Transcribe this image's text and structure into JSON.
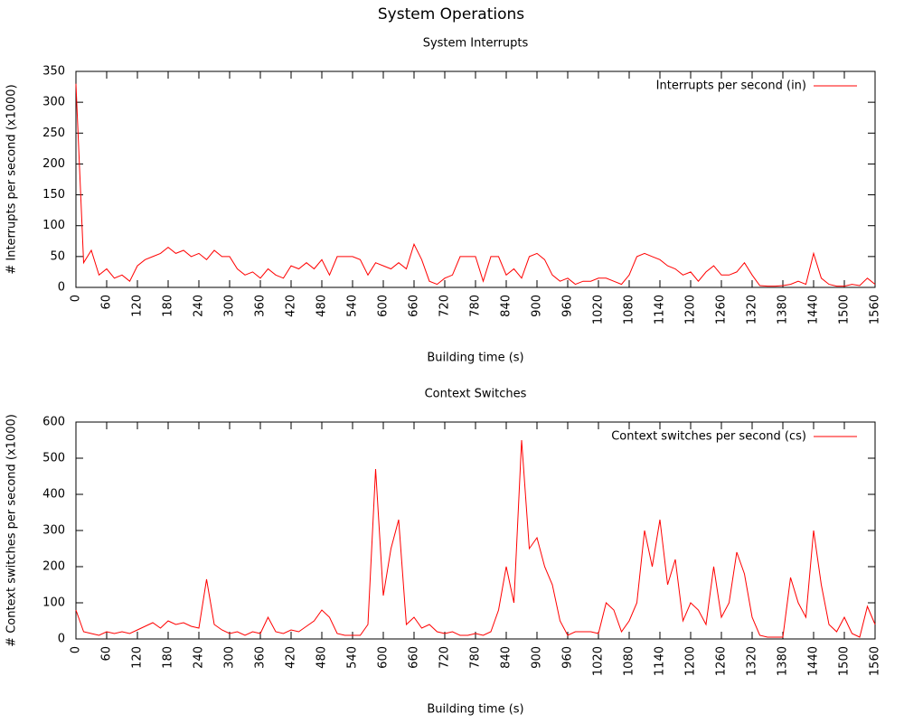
{
  "title": "System Operations",
  "chart_data": [
    {
      "type": "line",
      "title": "System Interrupts",
      "xlabel": "Building time (s)",
      "ylabel": "# Interrupts per second (x1000)",
      "legend": "upper right",
      "x": [
        0,
        15,
        30,
        45,
        60,
        75,
        90,
        105,
        120,
        135,
        150,
        165,
        180,
        195,
        210,
        225,
        240,
        255,
        270,
        285,
        300,
        315,
        330,
        345,
        360,
        375,
        390,
        405,
        420,
        435,
        450,
        465,
        480,
        495,
        510,
        525,
        540,
        555,
        570,
        585,
        600,
        615,
        630,
        645,
        660,
        675,
        690,
        705,
        720,
        735,
        750,
        765,
        780,
        795,
        810,
        825,
        840,
        855,
        870,
        885,
        900,
        915,
        930,
        945,
        960,
        975,
        990,
        1005,
        1020,
        1035,
        1050,
        1065,
        1080,
        1095,
        1110,
        1125,
        1140,
        1155,
        1170,
        1185,
        1200,
        1215,
        1230,
        1245,
        1260,
        1275,
        1290,
        1305,
        1320,
        1335,
        1350,
        1365,
        1380,
        1395,
        1410,
        1425,
        1440,
        1455,
        1470,
        1485,
        1500,
        1515,
        1530,
        1545,
        1560
      ],
      "series": [
        {
          "name": "Interrupts per second (in)",
          "color": "#ff0000",
          "values": [
            330,
            40,
            60,
            20,
            30,
            15,
            20,
            10,
            35,
            45,
            50,
            55,
            65,
            55,
            60,
            50,
            55,
            45,
            60,
            50,
            50,
            30,
            20,
            25,
            15,
            30,
            20,
            15,
            35,
            30,
            40,
            30,
            45,
            20,
            50,
            50,
            50,
            45,
            20,
            40,
            35,
            30,
            40,
            30,
            70,
            45,
            10,
            5,
            15,
            20,
            50,
            50,
            50,
            10,
            50,
            50,
            20,
            30,
            15,
            50,
            55,
            45,
            20,
            10,
            15,
            5,
            10,
            10,
            15,
            15,
            10,
            5,
            20,
            50,
            55,
            50,
            45,
            35,
            30,
            20,
            25,
            10,
            25,
            35,
            20,
            20,
            25,
            40,
            20,
            3,
            2,
            2,
            3,
            5,
            10,
            5,
            55,
            15,
            5,
            2,
            2,
            5,
            3,
            15,
            5
          ]
        }
      ],
      "xlim": [
        0,
        1560
      ],
      "xticks": [
        0,
        60,
        120,
        180,
        240,
        300,
        360,
        420,
        480,
        540,
        600,
        660,
        720,
        780,
        840,
        900,
        960,
        1020,
        1080,
        1140,
        1200,
        1260,
        1320,
        1380,
        1440,
        1500,
        1560
      ],
      "ylim": [
        0,
        350
      ],
      "yticks": [
        0,
        50,
        100,
        150,
        200,
        250,
        300,
        350
      ]
    },
    {
      "type": "line",
      "title": "Context Switches",
      "xlabel": "Building time (s)",
      "ylabel": "# Context switches per second (x1000)",
      "legend": "upper right",
      "x": [
        0,
        15,
        30,
        45,
        60,
        75,
        90,
        105,
        120,
        135,
        150,
        165,
        180,
        195,
        210,
        225,
        240,
        255,
        270,
        285,
        300,
        315,
        330,
        345,
        360,
        375,
        390,
        405,
        420,
        435,
        450,
        465,
        480,
        495,
        510,
        525,
        540,
        555,
        570,
        585,
        600,
        615,
        630,
        645,
        660,
        675,
        690,
        705,
        720,
        735,
        750,
        765,
        780,
        795,
        810,
        825,
        840,
        855,
        870,
        885,
        900,
        915,
        930,
        945,
        960,
        975,
        990,
        1005,
        1020,
        1035,
        1050,
        1065,
        1080,
        1095,
        1110,
        1125,
        1140,
        1155,
        1170,
        1185,
        1200,
        1215,
        1230,
        1245,
        1260,
        1275,
        1290,
        1305,
        1320,
        1335,
        1350,
        1365,
        1380,
        1395,
        1410,
        1425,
        1440,
        1455,
        1470,
        1485,
        1500,
        1515,
        1530,
        1545,
        1560
      ],
      "series": [
        {
          "name": "Context switches per second (cs)",
          "color": "#ff0000",
          "values": [
            80,
            20,
            15,
            10,
            20,
            15,
            20,
            15,
            25,
            35,
            45,
            30,
            50,
            40,
            45,
            35,
            30,
            165,
            40,
            25,
            15,
            20,
            10,
            20,
            15,
            60,
            20,
            15,
            25,
            20,
            35,
            50,
            80,
            60,
            15,
            10,
            10,
            10,
            40,
            470,
            120,
            250,
            330,
            40,
            60,
            30,
            40,
            20,
            15,
            20,
            10,
            10,
            15,
            10,
            20,
            80,
            200,
            100,
            550,
            250,
            280,
            200,
            150,
            50,
            10,
            20,
            20,
            20,
            15,
            100,
            80,
            20,
            50,
            100,
            300,
            200,
            330,
            150,
            220,
            50,
            100,
            80,
            40,
            200,
            60,
            100,
            240,
            180,
            60,
            10,
            5,
            5,
            5,
            170,
            100,
            60,
            300,
            150,
            40,
            20,
            60,
            15,
            5,
            90,
            40
          ]
        }
      ],
      "xlim": [
        0,
        1560
      ],
      "xticks": [
        0,
        60,
        120,
        180,
        240,
        300,
        360,
        420,
        480,
        540,
        600,
        660,
        720,
        780,
        840,
        900,
        960,
        1020,
        1080,
        1140,
        1200,
        1260,
        1320,
        1380,
        1440,
        1500,
        1560
      ],
      "ylim": [
        0,
        600
      ],
      "yticks": [
        0,
        100,
        200,
        300,
        400,
        500,
        600
      ]
    }
  ]
}
